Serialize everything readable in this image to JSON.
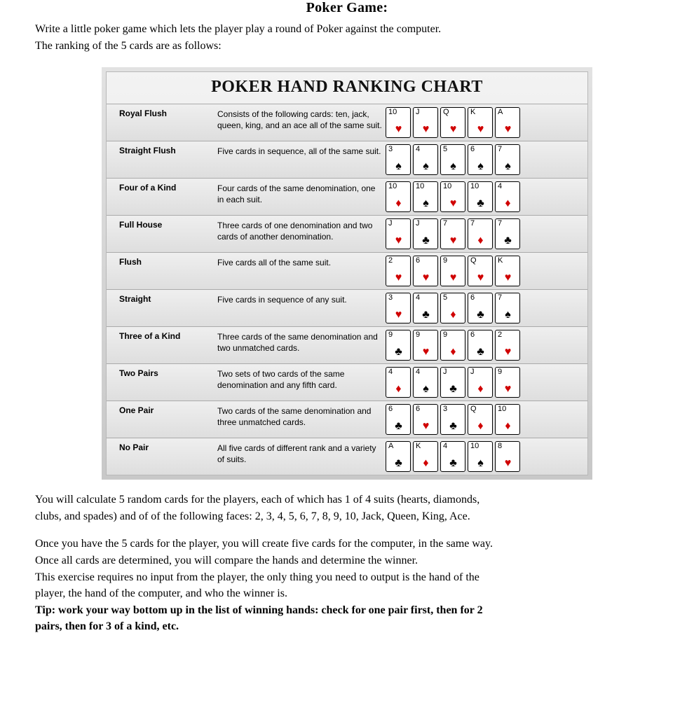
{
  "page_title_partial": "Poker Game:",
  "intro_line1": "Write a little poker game which lets the player play a round of Poker against the computer.",
  "intro_line2": "The ranking of the 5 cards are as follows:",
  "chart_title": "POKER HAND RANKING CHART",
  "suits": {
    "heart": {
      "glyph": "♥",
      "color": "red"
    },
    "diamond": {
      "glyph": "♦",
      "color": "red"
    },
    "club": {
      "glyph": "♣",
      "color": "black"
    },
    "spade": {
      "glyph": "♠",
      "color": "black"
    }
  },
  "hands": [
    {
      "name": "Royal Flush",
      "desc": "Consists of the following cards: ten, jack, queen, king, and an ace all of the same suit.",
      "cards": [
        {
          "rank": "10",
          "suit": "heart"
        },
        {
          "rank": "J",
          "suit": "heart"
        },
        {
          "rank": "Q",
          "suit": "heart"
        },
        {
          "rank": "K",
          "suit": "heart"
        },
        {
          "rank": "A",
          "suit": "heart"
        }
      ]
    },
    {
      "name": "Straight Flush",
      "desc": "Five cards in sequence, all of the same suit.",
      "cards": [
        {
          "rank": "3",
          "suit": "spade"
        },
        {
          "rank": "4",
          "suit": "spade"
        },
        {
          "rank": "5",
          "suit": "spade"
        },
        {
          "rank": "6",
          "suit": "spade"
        },
        {
          "rank": "7",
          "suit": "spade"
        }
      ]
    },
    {
      "name": "Four of a Kind",
      "desc": "Four cards of the same denomination, one in each suit.",
      "cards": [
        {
          "rank": "10",
          "suit": "diamond"
        },
        {
          "rank": "10",
          "suit": "spade"
        },
        {
          "rank": "10",
          "suit": "heart"
        },
        {
          "rank": "10",
          "suit": "club"
        },
        {
          "rank": "4",
          "suit": "diamond"
        }
      ]
    },
    {
      "name": "Full House",
      "desc": "Three cards of one denomination and two cards of another denomination.",
      "cards": [
        {
          "rank": "J",
          "suit": "heart"
        },
        {
          "rank": "J",
          "suit": "club"
        },
        {
          "rank": "7",
          "suit": "heart"
        },
        {
          "rank": "7",
          "suit": "diamond"
        },
        {
          "rank": "7",
          "suit": "club"
        }
      ]
    },
    {
      "name": "Flush",
      "desc": "Five cards all of the same suit.",
      "cards": [
        {
          "rank": "2",
          "suit": "heart"
        },
        {
          "rank": "6",
          "suit": "heart"
        },
        {
          "rank": "9",
          "suit": "heart"
        },
        {
          "rank": "Q",
          "suit": "heart"
        },
        {
          "rank": "K",
          "suit": "heart"
        }
      ]
    },
    {
      "name": "Straight",
      "desc": "Five cards in sequence of any suit.",
      "cards": [
        {
          "rank": "3",
          "suit": "heart"
        },
        {
          "rank": "4",
          "suit": "club"
        },
        {
          "rank": "5",
          "suit": "diamond"
        },
        {
          "rank": "6",
          "suit": "club"
        },
        {
          "rank": "7",
          "suit": "spade"
        }
      ]
    },
    {
      "name": "Three of a Kind",
      "desc": "Three cards of the same denomination and two unmatched cards.",
      "cards": [
        {
          "rank": "9",
          "suit": "club"
        },
        {
          "rank": "9",
          "suit": "heart"
        },
        {
          "rank": "9",
          "suit": "diamond"
        },
        {
          "rank": "6",
          "suit": "club"
        },
        {
          "rank": "2",
          "suit": "heart"
        }
      ]
    },
    {
      "name": "Two Pairs",
      "desc": "Two sets of two cards of the same denomination and any fifth card.",
      "cards": [
        {
          "rank": "4",
          "suit": "diamond"
        },
        {
          "rank": "4",
          "suit": "spade"
        },
        {
          "rank": "J",
          "suit": "club"
        },
        {
          "rank": "J",
          "suit": "diamond"
        },
        {
          "rank": "9",
          "suit": "heart"
        }
      ]
    },
    {
      "name": "One Pair",
      "desc": "Two cards of the same denomination and three unmatched cards.",
      "cards": [
        {
          "rank": "6",
          "suit": "club"
        },
        {
          "rank": "6",
          "suit": "heart"
        },
        {
          "rank": "3",
          "suit": "club"
        },
        {
          "rank": "Q",
          "suit": "diamond"
        },
        {
          "rank": "10",
          "suit": "diamond"
        }
      ]
    },
    {
      "name": "No Pair",
      "desc": "All five cards of different rank and a variety of suits.",
      "cards": [
        {
          "rank": "A",
          "suit": "club"
        },
        {
          "rank": "K",
          "suit": "diamond"
        },
        {
          "rank": "4",
          "suit": "club"
        },
        {
          "rank": "10",
          "suit": "spade"
        },
        {
          "rank": "8",
          "suit": "heart"
        }
      ]
    }
  ],
  "para2_line1": "You will calculate 5 random cards for the players, each of which has 1 of 4 suits (hearts, diamonds,",
  "para2_line2": "clubs, and spades) and of of the following faces: 2, 3, 4, 5, 6, 7, 8, 9, 10, Jack, Queen, King, Ace.",
  "para3_line1": "Once you have the 5 cards for the player, you will create five cards for the computer, in the same way.",
  "para3_line2": "Once all cards are determined, you will compare the hands and determine the winner.",
  "para3_line3": "This exercise requires no input from the player, the only thing you need to output is the hand of the",
  "para3_line4": "player, the hand of the computer, and who the winner is.",
  "tip_line1": "Tip: work your way bottom up in the list of winning hands: check for one pair first, then for 2",
  "tip_line2": "pairs, then for 3 of a kind, etc."
}
